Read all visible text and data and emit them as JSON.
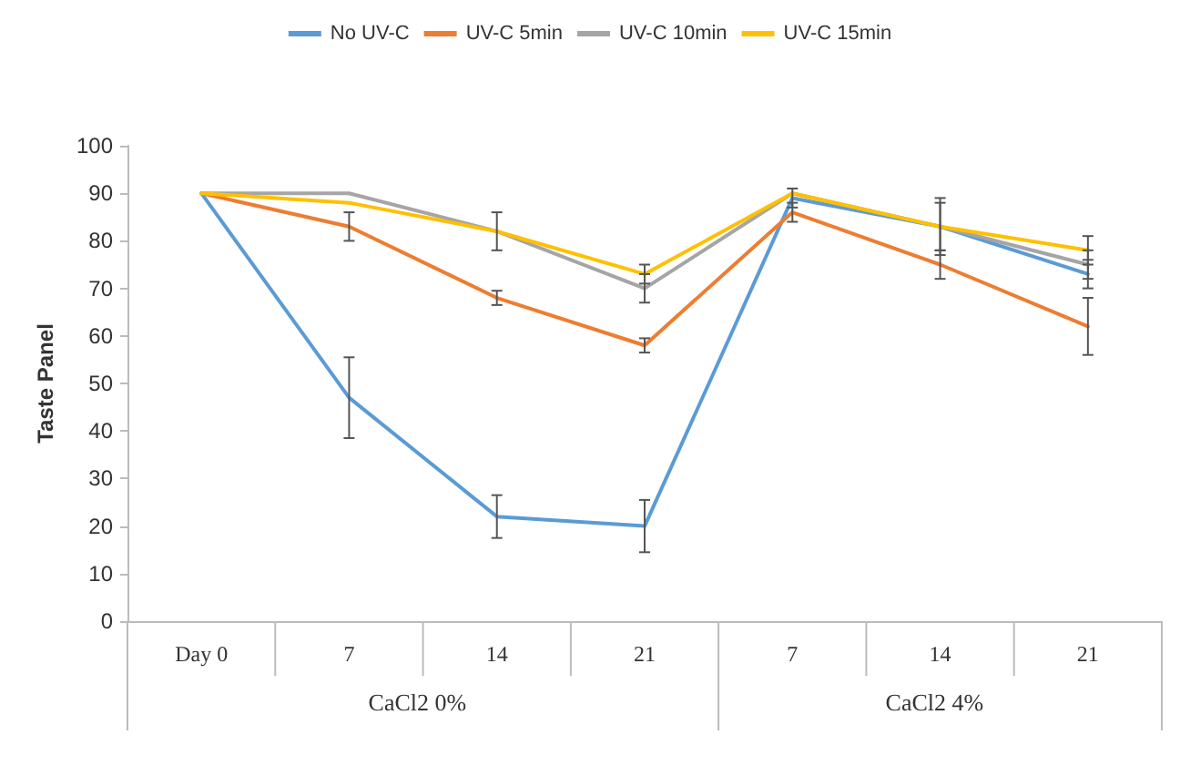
{
  "chart_data": {
    "type": "line",
    "ylabel": "Taste Panel",
    "categories": [
      "Day 0",
      "7",
      "14",
      "21",
      "7",
      "14",
      "21"
    ],
    "ylim": [
      0,
      100
    ],
    "yticks": [
      0,
      10,
      20,
      30,
      40,
      50,
      60,
      70,
      80,
      90,
      100
    ],
    "grid": false,
    "legend": "top",
    "marker": "none",
    "line_style": "solid",
    "annotations": [
      "CaCl2 0%",
      "CaCl2 4%"
    ],
    "series": [
      {
        "name": "No UV-C",
        "color": "#5b9bd5",
        "values": [
          90,
          47,
          22,
          20,
          89,
          83,
          73
        ],
        "errors": [
          null,
          8.5,
          4.5,
          5.5,
          2,
          5,
          3
        ]
      },
      {
        "name": "UV-C 5min",
        "color": "#ed7d31",
        "values": [
          90,
          83,
          68,
          58,
          86,
          75,
          62
        ],
        "errors": [
          null,
          3,
          1.5,
          1.5,
          2,
          3,
          6
        ]
      },
      {
        "name": "UV-C 10min",
        "color": "#a5a5a5",
        "values": [
          90,
          90,
          82,
          70,
          90,
          83,
          75
        ],
        "errors": [
          null,
          null,
          null,
          3,
          null,
          6,
          3
        ]
      },
      {
        "name": "UV-C 15min",
        "color": "#ffc000",
        "values": [
          90,
          88,
          82,
          73,
          90,
          83,
          78
        ],
        "errors": [
          null,
          null,
          4,
          2,
          null,
          null,
          3
        ]
      }
    ]
  }
}
